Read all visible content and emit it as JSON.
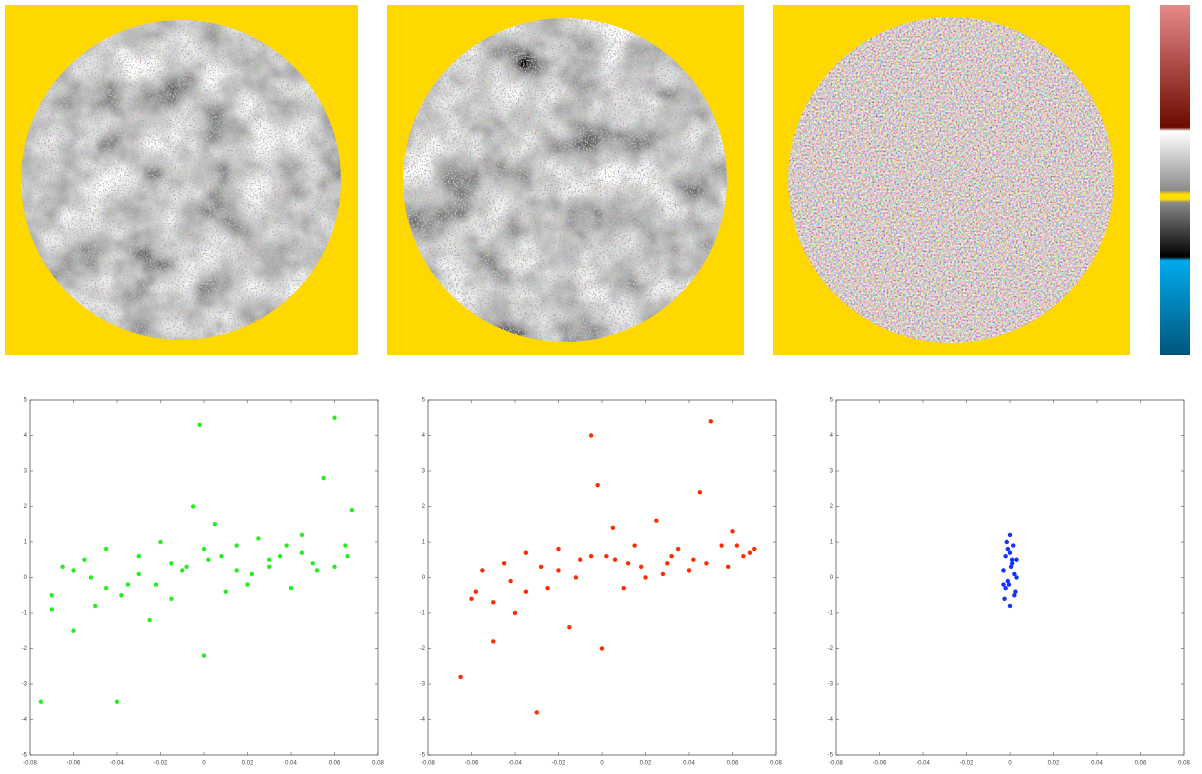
{
  "chart_data": [
    {
      "type": "scatter",
      "xlim": [
        -0.08,
        0.08
      ],
      "ylim": [
        -5,
        5
      ],
      "xticks": [
        -0.08,
        -0.06,
        -0.04,
        -0.02,
        0,
        0.02,
        0.04,
        0.06,
        0.08
      ],
      "yticks": [
        -5,
        -4,
        -3,
        -2,
        -1,
        0,
        1,
        2,
        3,
        4,
        5
      ],
      "series": [
        {
          "color": "#22ee22",
          "x": [
            -0.075,
            -0.07,
            -0.065,
            -0.06,
            -0.055,
            -0.05,
            -0.045,
            -0.04,
            -0.035,
            -0.03,
            -0.025,
            -0.02,
            -0.015,
            -0.01,
            -0.005,
            -0.002,
            0,
            0.002,
            0.005,
            0.01,
            0.015,
            0.02,
            0.025,
            0.03,
            0.035,
            0.04,
            0.045,
            0.05,
            0.055,
            0.06,
            0.065,
            0.068,
            -0.06,
            -0.045,
            -0.03,
            -0.015,
            0,
            0.015,
            0.03,
            0.045,
            0.06,
            -0.07,
            -0.052,
            -0.038,
            -0.022,
            -0.008,
            0.008,
            0.022,
            0.038,
            0.052,
            0.066
          ],
          "values": [
            -3.5,
            -0.5,
            0.3,
            -1.5,
            0.5,
            -0.8,
            0.8,
            -3.5,
            -0.2,
            0.6,
            -1.2,
            1.0,
            -0.6,
            0.2,
            2.0,
            4.3,
            -2.2,
            0.5,
            1.5,
            -0.4,
            0.9,
            -0.2,
            1.1,
            0.3,
            0.6,
            -0.3,
            1.2,
            0.4,
            2.8,
            4.5,
            0.9,
            1.9,
            0.2,
            -0.3,
            0.1,
            0.4,
            0.8,
            0.2,
            0.5,
            0.7,
            0.3,
            -0.9,
            0.0,
            -0.5,
            -0.2,
            0.3,
            0.6,
            0.1,
            0.9,
            0.2,
            0.6
          ]
        }
      ]
    },
    {
      "type": "scatter",
      "xlim": [
        -0.08,
        0.08
      ],
      "ylim": [
        -5,
        5
      ],
      "xticks": [
        -0.08,
        -0.06,
        -0.04,
        -0.02,
        0,
        0.02,
        0.04,
        0.06,
        0.08
      ],
      "yticks": [
        -5,
        -4,
        -3,
        -2,
        -1,
        0,
        1,
        2,
        3,
        4,
        5
      ],
      "series": [
        {
          "color": "#ff2a00",
          "x": [
            -0.065,
            -0.06,
            -0.055,
            -0.05,
            -0.045,
            -0.04,
            -0.035,
            -0.03,
            -0.025,
            -0.02,
            -0.015,
            -0.01,
            -0.005,
            -0.002,
            0,
            0.002,
            0.005,
            0.01,
            0.015,
            0.02,
            0.025,
            0.03,
            0.035,
            0.04,
            0.045,
            0.05,
            0.055,
            0.06,
            0.065,
            0.07,
            -0.058,
            -0.042,
            -0.028,
            -0.012,
            0.006,
            0.018,
            0.032,
            0.048,
            0.062,
            -0.05,
            -0.035,
            -0.02,
            -0.005,
            0.012,
            0.028,
            0.042,
            0.058,
            0.068
          ],
          "values": [
            -2.8,
            -0.6,
            0.2,
            -1.8,
            0.4,
            -1.0,
            0.7,
            -3.8,
            -0.3,
            0.8,
            -1.4,
            0.5,
            4.0,
            2.6,
            -2.0,
            0.6,
            1.4,
            -0.3,
            0.9,
            0.0,
            1.6,
            0.4,
            0.8,
            0.2,
            2.4,
            4.4,
            0.9,
            1.3,
            0.6,
            0.8,
            -0.4,
            -0.1,
            0.3,
            0.0,
            0.5,
            0.3,
            0.6,
            0.4,
            0.9,
            -0.7,
            -0.4,
            0.2,
            0.6,
            0.4,
            0.1,
            0.5,
            0.3,
            0.7
          ]
        }
      ]
    },
    {
      "type": "scatter",
      "xlim": [
        -0.08,
        0.08
      ],
      "ylim": [
        -5,
        5
      ],
      "xticks": [
        -0.08,
        -0.06,
        -0.04,
        -0.02,
        0,
        0.02,
        0.04,
        0.06,
        0.08
      ],
      "yticks": [
        -5,
        -4,
        -3,
        -2,
        -1,
        0,
        1,
        2,
        3,
        4,
        5
      ],
      "series": [
        {
          "color": "#1133ff",
          "x": [
            -0.003,
            -0.002,
            -0.001,
            0,
            0.001,
            0.002,
            0.003,
            -0.0025,
            -0.0015,
            -0.0005,
            0.0005,
            0.0015,
            0.0025,
            -0.002,
            0,
            0.002,
            -0.001,
            0.001,
            0,
            -0.003,
            0.003
          ],
          "values": [
            0.2,
            -0.3,
            0.8,
            1.2,
            0.5,
            -0.5,
            0.0,
            -0.6,
            1.0,
            -0.2,
            0.3,
            0.9,
            -0.4,
            0.6,
            -0.8,
            0.1,
            -0.1,
            0.4,
            0.7,
            -0.2,
            0.5
          ]
        }
      ]
    }
  ]
}
